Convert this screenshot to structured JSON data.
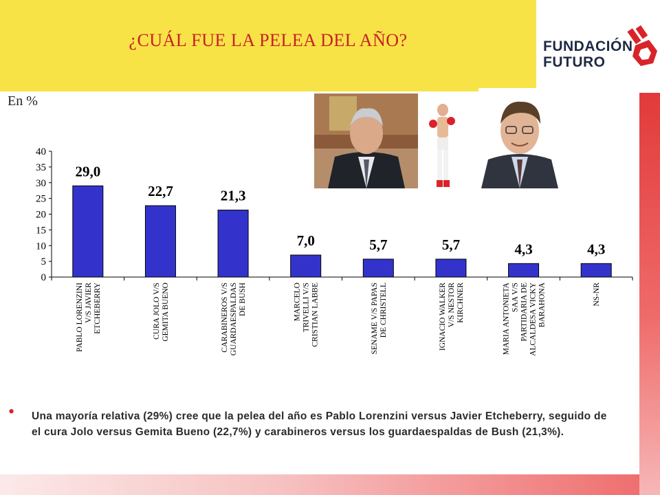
{
  "slide": {
    "title": "¿CUÁL FUE LA PELEA DEL AÑO?",
    "unit_label": "En %",
    "logo": {
      "line1": "FUNDACIÓN",
      "line2": "FUTURO"
    },
    "note": "Una mayoría relativa (29%) cree que la pelea del año es Pablo Lorenzini versus Javier Etcheberry, seguido de el cura Jolo versus Gemita Bueno (22,7%) y carabineros versus los guardaespaldas de Bush (21,3%)."
  },
  "colors": {
    "title_bg": "#f8e346",
    "title_text": "#c8202a",
    "bar_fill": "#3333cc",
    "accent_red": "#e23a3a",
    "logo_text": "#1f2a44"
  },
  "chart_data": {
    "type": "bar",
    "categories": [
      [
        "PABLO LORENZINI",
        "V/S JAVIER",
        "ETCHEBERRY"
      ],
      [
        "CURA JOLO V/S",
        "GEMITA BUENO"
      ],
      [
        "CARABINEROS V/S",
        "GUARDAESPALDAS",
        "DE BUSH"
      ],
      [
        "MARCELO",
        "TRIVELLI V/S",
        "CRISTIAN LABBE"
      ],
      [
        "SENAME V/S PAPAS",
        "DE CHRISTELL"
      ],
      [
        "IGNACIO WALKER",
        "V/S NESTOR",
        "KIRCHNER"
      ],
      [
        "MARIA ANTONIETA",
        "SAA V/S",
        "PARTIDARIA DE",
        "ALCALDESA VICKY",
        "BARAHONA"
      ],
      [
        "NS-NR"
      ]
    ],
    "values": [
      29.0,
      22.7,
      21.3,
      7.0,
      5.7,
      5.7,
      4.3,
      4.3
    ],
    "value_labels": [
      "29,0",
      "22,7",
      "21,3",
      "7,0",
      "5,7",
      "5,7",
      "4,3",
      "4,3"
    ],
    "y_ticks": [
      "0",
      "5",
      "10",
      "15",
      "20",
      "25",
      "30",
      "35",
      "40"
    ],
    "ylim": [
      0,
      40
    ],
    "grid": false,
    "legend": "none"
  }
}
